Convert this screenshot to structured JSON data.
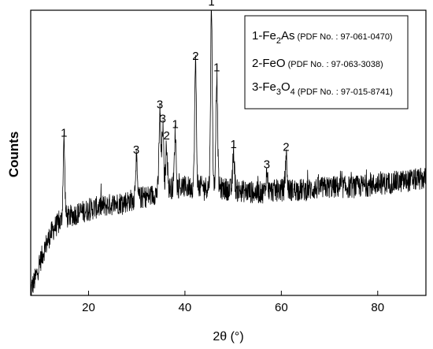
{
  "chart_data": {
    "type": "line",
    "xlabel": "2θ (°)",
    "ylabel": "Counts",
    "xlim": [
      8,
      90
    ],
    "ylim": [
      0,
      1
    ],
    "x_ticks": [
      20,
      40,
      60,
      80
    ],
    "y_ticks": [],
    "grid": false,
    "legend": {
      "placement": "top-right",
      "entries": [
        {
          "prefix": "1-Fe",
          "sub1": "2",
          "rest": "As",
          "sub2": "",
          "tail": "",
          "pdf": "(PDF No. : 97-061-0470)"
        },
        {
          "prefix": "2-FeO",
          "sub1": "",
          "rest": "",
          "sub2": "",
          "tail": "",
          "pdf": "(PDF No. : 97-063-3038)"
        },
        {
          "prefix": "3-Fe",
          "sub1": "3",
          "rest": "O",
          "sub2": "4",
          "tail": "",
          "pdf": "(PDF No. : 97-015-8741)"
        }
      ]
    },
    "baseline": [
      [
        8,
        0.02
      ],
      [
        9,
        0.06
      ],
      [
        10,
        0.12
      ],
      [
        11,
        0.17
      ],
      [
        12,
        0.21
      ],
      [
        13,
        0.24
      ],
      [
        15,
        0.27
      ],
      [
        18,
        0.29
      ],
      [
        20,
        0.3
      ],
      [
        22,
        0.31
      ],
      [
        25,
        0.32
      ],
      [
        28,
        0.33
      ],
      [
        30,
        0.34
      ],
      [
        33,
        0.35
      ],
      [
        35,
        0.37
      ],
      [
        38,
        0.38
      ],
      [
        40,
        0.38
      ],
      [
        45,
        0.38
      ],
      [
        50,
        0.37
      ],
      [
        55,
        0.36
      ],
      [
        60,
        0.37
      ],
      [
        65,
        0.37
      ],
      [
        70,
        0.38
      ],
      [
        75,
        0.38
      ],
      [
        80,
        0.39
      ],
      [
        85,
        0.4
      ],
      [
        90,
        0.41
      ]
    ],
    "peaks": [
      {
        "x": 14.9,
        "y": 0.54,
        "label": "1"
      },
      {
        "x": 29.9,
        "y": 0.48,
        "label": "3"
      },
      {
        "x": 34.8,
        "y": 0.64,
        "label": "3"
      },
      {
        "x": 35.4,
        "y": 0.59,
        "label": "3"
      },
      {
        "x": 36.2,
        "y": 0.53,
        "label": "2"
      },
      {
        "x": 38.0,
        "y": 0.57,
        "label": "1"
      },
      {
        "x": 42.2,
        "y": 0.81,
        "label": "2"
      },
      {
        "x": 45.5,
        "y": 1.0,
        "label": "1"
      },
      {
        "x": 46.6,
        "y": 0.77,
        "label": "1"
      },
      {
        "x": 50.1,
        "y": 0.5,
        "label": "1"
      },
      {
        "x": 57.0,
        "y": 0.43,
        "label": "3"
      },
      {
        "x": 61.0,
        "y": 0.49,
        "label": "2"
      }
    ]
  }
}
